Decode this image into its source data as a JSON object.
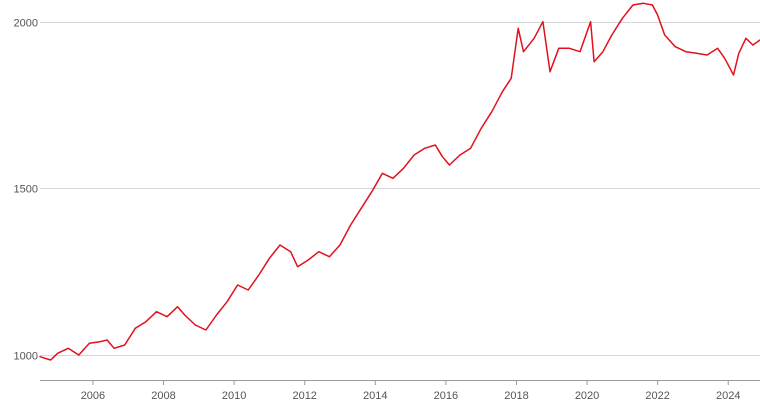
{
  "chart_data": {
    "type": "line",
    "title": "",
    "xlabel": "",
    "ylabel": "",
    "xlim": [
      2004.5,
      2024.9
    ],
    "ylim": [
      925,
      2065
    ],
    "x_ticks": [
      2006,
      2008,
      2010,
      2012,
      2014,
      2016,
      2018,
      2020,
      2022,
      2024
    ],
    "x_tick_labels": [
      "2006",
      "2008",
      "2010",
      "2012",
      "2014",
      "2016",
      "2018",
      "2020",
      "2022",
      "2024"
    ],
    "y_ticks": [
      1000,
      1500,
      2000
    ],
    "y_tick_labels": [
      "1000",
      "1500",
      "2000"
    ],
    "grid": "horizontal",
    "legend": "none",
    "colors": {
      "series": "#e3101b",
      "grid": "#d6d6d6",
      "axis": "#9a9a9a"
    },
    "series": [
      {
        "x": [
          2004.5,
          2004.8,
          2005.0,
          2005.3,
          2005.6,
          2005.9,
          2006.2,
          2006.4,
          2006.6,
          2006.9,
          2007.2,
          2007.5,
          2007.8,
          2008.1,
          2008.4,
          2008.6,
          2008.9,
          2009.2,
          2009.5,
          2009.8,
          2010.1,
          2010.4,
          2010.7,
          2011.0,
          2011.3,
          2011.6,
          2011.8,
          2012.1,
          2012.4,
          2012.7,
          2013.0,
          2013.3,
          2013.6,
          2013.9,
          2014.2,
          2014.5,
          2014.8,
          2015.1,
          2015.4,
          2015.7,
          2015.9,
          2016.1,
          2016.4,
          2016.7,
          2017.0,
          2017.3,
          2017.6,
          2017.85,
          2018.05,
          2018.2,
          2018.5,
          2018.75,
          2018.95,
          2019.2,
          2019.5,
          2019.8,
          2020.1,
          2020.2,
          2020.45,
          2020.7,
          2021.0,
          2021.3,
          2021.6,
          2021.85,
          2022.0,
          2022.2,
          2022.5,
          2022.8,
          2023.1,
          2023.4,
          2023.7,
          2023.9,
          2024.15,
          2024.3,
          2024.5,
          2024.7,
          2024.9
        ],
        "y": [
          995,
          985,
          1005,
          1020,
          1000,
          1035,
          1040,
          1045,
          1020,
          1030,
          1080,
          1100,
          1130,
          1115,
          1145,
          1120,
          1090,
          1075,
          1120,
          1160,
          1210,
          1195,
          1240,
          1290,
          1330,
          1310,
          1265,
          1285,
          1310,
          1295,
          1330,
          1390,
          1440,
          1490,
          1545,
          1530,
          1560,
          1600,
          1620,
          1630,
          1595,
          1570,
          1600,
          1620,
          1680,
          1730,
          1790,
          1830,
          1980,
          1910,
          1950,
          2000,
          1850,
          1920,
          1920,
          1910,
          2000,
          1880,
          1910,
          1960,
          2010,
          2050,
          2055,
          2050,
          2020,
          1960,
          1925,
          1910,
          1905,
          1900,
          1920,
          1890,
          1840,
          1905,
          1950,
          1930,
          1945
        ]
      }
    ]
  }
}
